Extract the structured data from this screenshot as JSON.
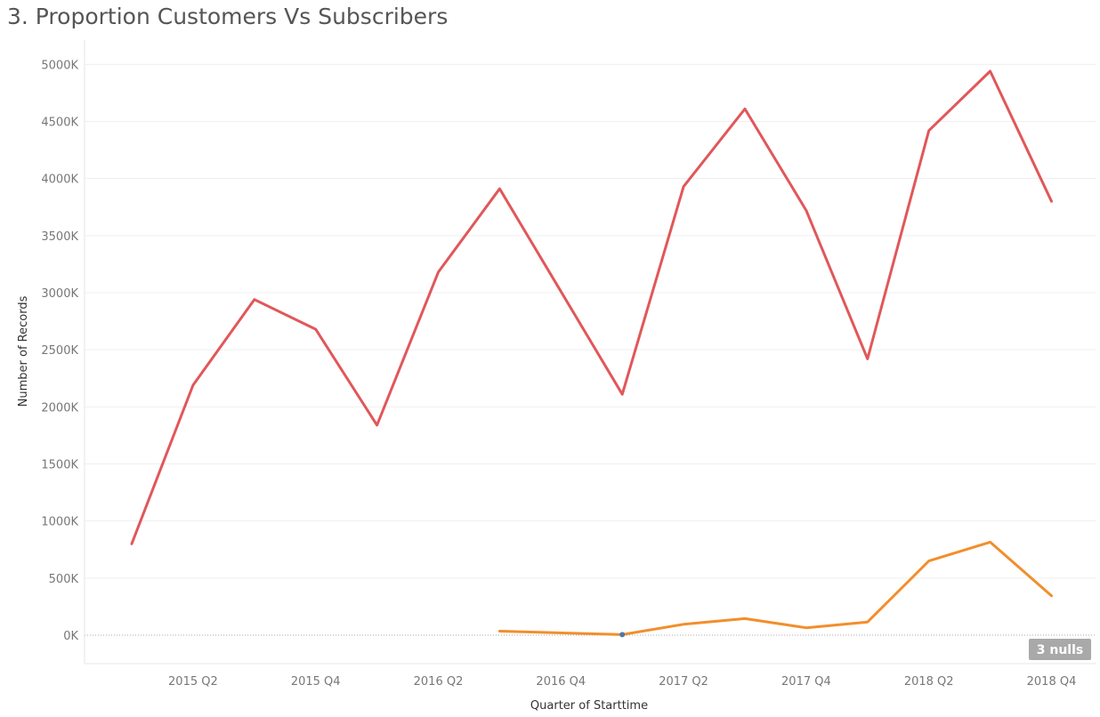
{
  "title": "3. Proportion Customers Vs Subscribers",
  "chart_data": {
    "type": "line",
    "title": "3. Proportion Customers Vs Subscribers",
    "xlabel": "Quarter of Starttime",
    "ylabel": "Number of Records",
    "x": [
      "2015 Q1",
      "2015 Q2",
      "2015 Q3",
      "2015 Q4",
      "2016 Q1",
      "2016 Q2",
      "2016 Q3",
      "2016 Q4",
      "2017 Q1",
      "2017 Q2",
      "2017 Q3",
      "2017 Q4",
      "2018 Q1",
      "2018 Q2",
      "2018 Q3",
      "2018 Q4"
    ],
    "x_tick_labels": [
      "2015 Q2",
      "2015 Q4",
      "2016 Q2",
      "2016 Q4",
      "2017 Q2",
      "2017 Q4",
      "2018 Q2",
      "2018 Q4"
    ],
    "ylim": [
      -250000,
      5100000
    ],
    "y_ticks": [
      0,
      500000,
      1000000,
      1500000,
      2000000,
      2500000,
      3000000,
      3500000,
      4000000,
      4500000,
      5000000
    ],
    "y_tick_labels": [
      "0K",
      "500K",
      "1000K",
      "1500K",
      "2000K",
      "2500K",
      "3000K",
      "3500K",
      "4000K",
      "4500K",
      "5000K"
    ],
    "grid": true,
    "series": [
      {
        "color": "#e15759",
        "values": [
          800000,
          2190000,
          2940000,
          2680000,
          1840000,
          3180000,
          3910000,
          3010000,
          2110000,
          3930000,
          4610000,
          3720000,
          2420000,
          4420000,
          4940000,
          3800000
        ]
      },
      {
        "color": "#f28e2b",
        "values": [
          null,
          null,
          null,
          null,
          null,
          null,
          35000,
          null,
          5000,
          95000,
          145000,
          65000,
          115000,
          650000,
          815000,
          345000
        ]
      }
    ],
    "highlight_point": {
      "x": "2017 Q1",
      "y": 5000,
      "color": "#4e79a7"
    },
    "null_indicator": "3 nulls"
  }
}
